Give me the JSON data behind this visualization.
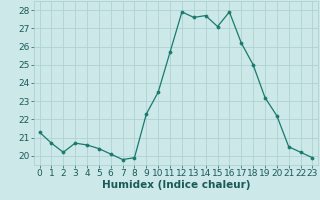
{
  "xlabel": "Humidex (Indice chaleur)",
  "x": [
    0,
    1,
    2,
    3,
    4,
    5,
    6,
    7,
    8,
    9,
    10,
    11,
    12,
    13,
    14,
    15,
    16,
    17,
    18,
    19,
    20,
    21,
    22,
    23
  ],
  "y": [
    21.3,
    20.7,
    20.2,
    20.7,
    20.6,
    20.4,
    20.1,
    19.8,
    19.9,
    22.3,
    23.5,
    25.7,
    27.9,
    27.6,
    27.7,
    27.1,
    27.9,
    26.2,
    25.0,
    23.2,
    22.2,
    20.5,
    20.2,
    19.9
  ],
  "ylim": [
    19.5,
    28.5
  ],
  "yticks": [
    20,
    21,
    22,
    23,
    24,
    25,
    26,
    27,
    28
  ],
  "xticks": [
    0,
    1,
    2,
    3,
    4,
    5,
    6,
    7,
    8,
    9,
    10,
    11,
    12,
    13,
    14,
    15,
    16,
    17,
    18,
    19,
    20,
    21,
    22,
    23
  ],
  "line_color": "#1a7a6e",
  "marker_color": "#1a7a6e",
  "bg_color": "#cce8e8",
  "grid_color": "#aacece",
  "tick_label_fontsize": 6.5,
  "xlabel_fontsize": 7.5,
  "xlim": [
    -0.5,
    23.5
  ]
}
